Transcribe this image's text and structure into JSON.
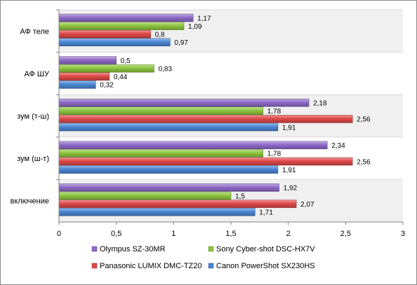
{
  "chart_data": {
    "type": "bar",
    "orientation": "horizontal",
    "categories": [
      "АФ теле",
      "АФ ШУ",
      "зум (т-ш)",
      "зум (ш-т)",
      "включение"
    ],
    "series": [
      {
        "name": "Olympus SZ-30MR",
        "color": "#8e6ac8",
        "values": [
          1.17,
          0.5,
          2.18,
          2.34,
          1.92
        ],
        "labels": [
          "1,17",
          "0,5",
          "2,18",
          "2,34",
          "1,92"
        ]
      },
      {
        "name": "Sony Cyber-shot DSC-HX7V",
        "color": "#8dc63f",
        "values": [
          1.09,
          0.83,
          1.78,
          1.78,
          1.5
        ],
        "labels": [
          "1,09",
          "0,83",
          "1,78",
          "1,78",
          "1,5"
        ]
      },
      {
        "name": "Panasonic LUMIX DMC-TZ20",
        "color": "#e04848",
        "values": [
          0.8,
          0.44,
          2.56,
          2.56,
          2.07
        ],
        "labels": [
          "0,8",
          "0,44",
          "2,56",
          "2,56",
          "2,07"
        ]
      },
      {
        "name": "Canon PowerShot SX230HS",
        "color": "#4a86d4",
        "values": [
          0.97,
          0.32,
          1.91,
          1.91,
          1.71
        ],
        "labels": [
          "0,97",
          "0,32",
          "1,91",
          "1,91",
          "1,71"
        ]
      }
    ],
    "xlim": [
      0,
      3
    ],
    "x_ticks": [
      0,
      0.5,
      1,
      1.5,
      2,
      2.5,
      3
    ],
    "x_tick_labels": [
      "0",
      "0,5",
      "1",
      "1,5",
      "2",
      "2,5",
      "3"
    ],
    "grid": false,
    "legend_position": "bottom"
  }
}
